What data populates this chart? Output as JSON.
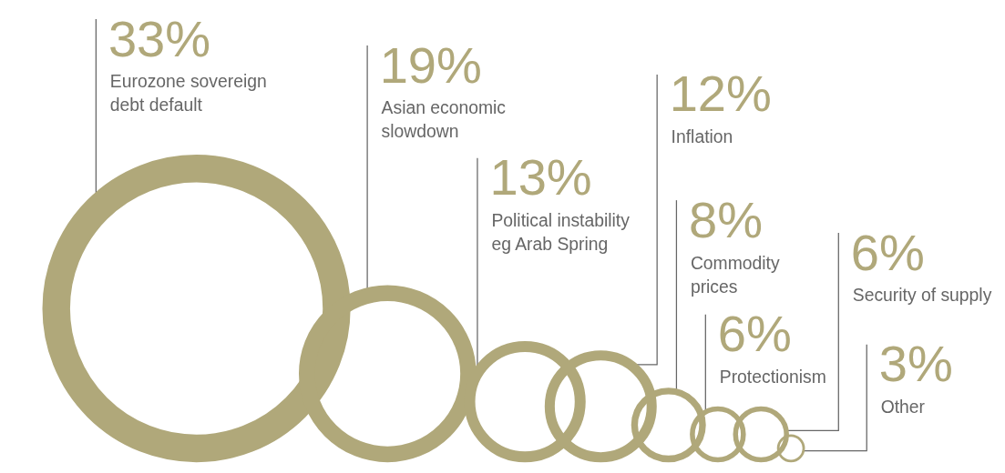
{
  "chart_data": {
    "type": "other",
    "categories": [
      "Eurozone sovereign debt default",
      "Asian economic slowdown",
      "Political instability eg Arab Spring",
      "Inflation",
      "Commodity prices",
      "Protectionism",
      "Security of supply",
      "Other"
    ],
    "values": [
      33,
      19,
      13,
      12,
      8,
      6,
      6,
      3
    ],
    "value_labels": [
      "33%",
      "19%",
      "13%",
      "12%",
      "8%",
      "6%",
      "6%",
      "3%"
    ],
    "color": "#b0a87a"
  }
}
